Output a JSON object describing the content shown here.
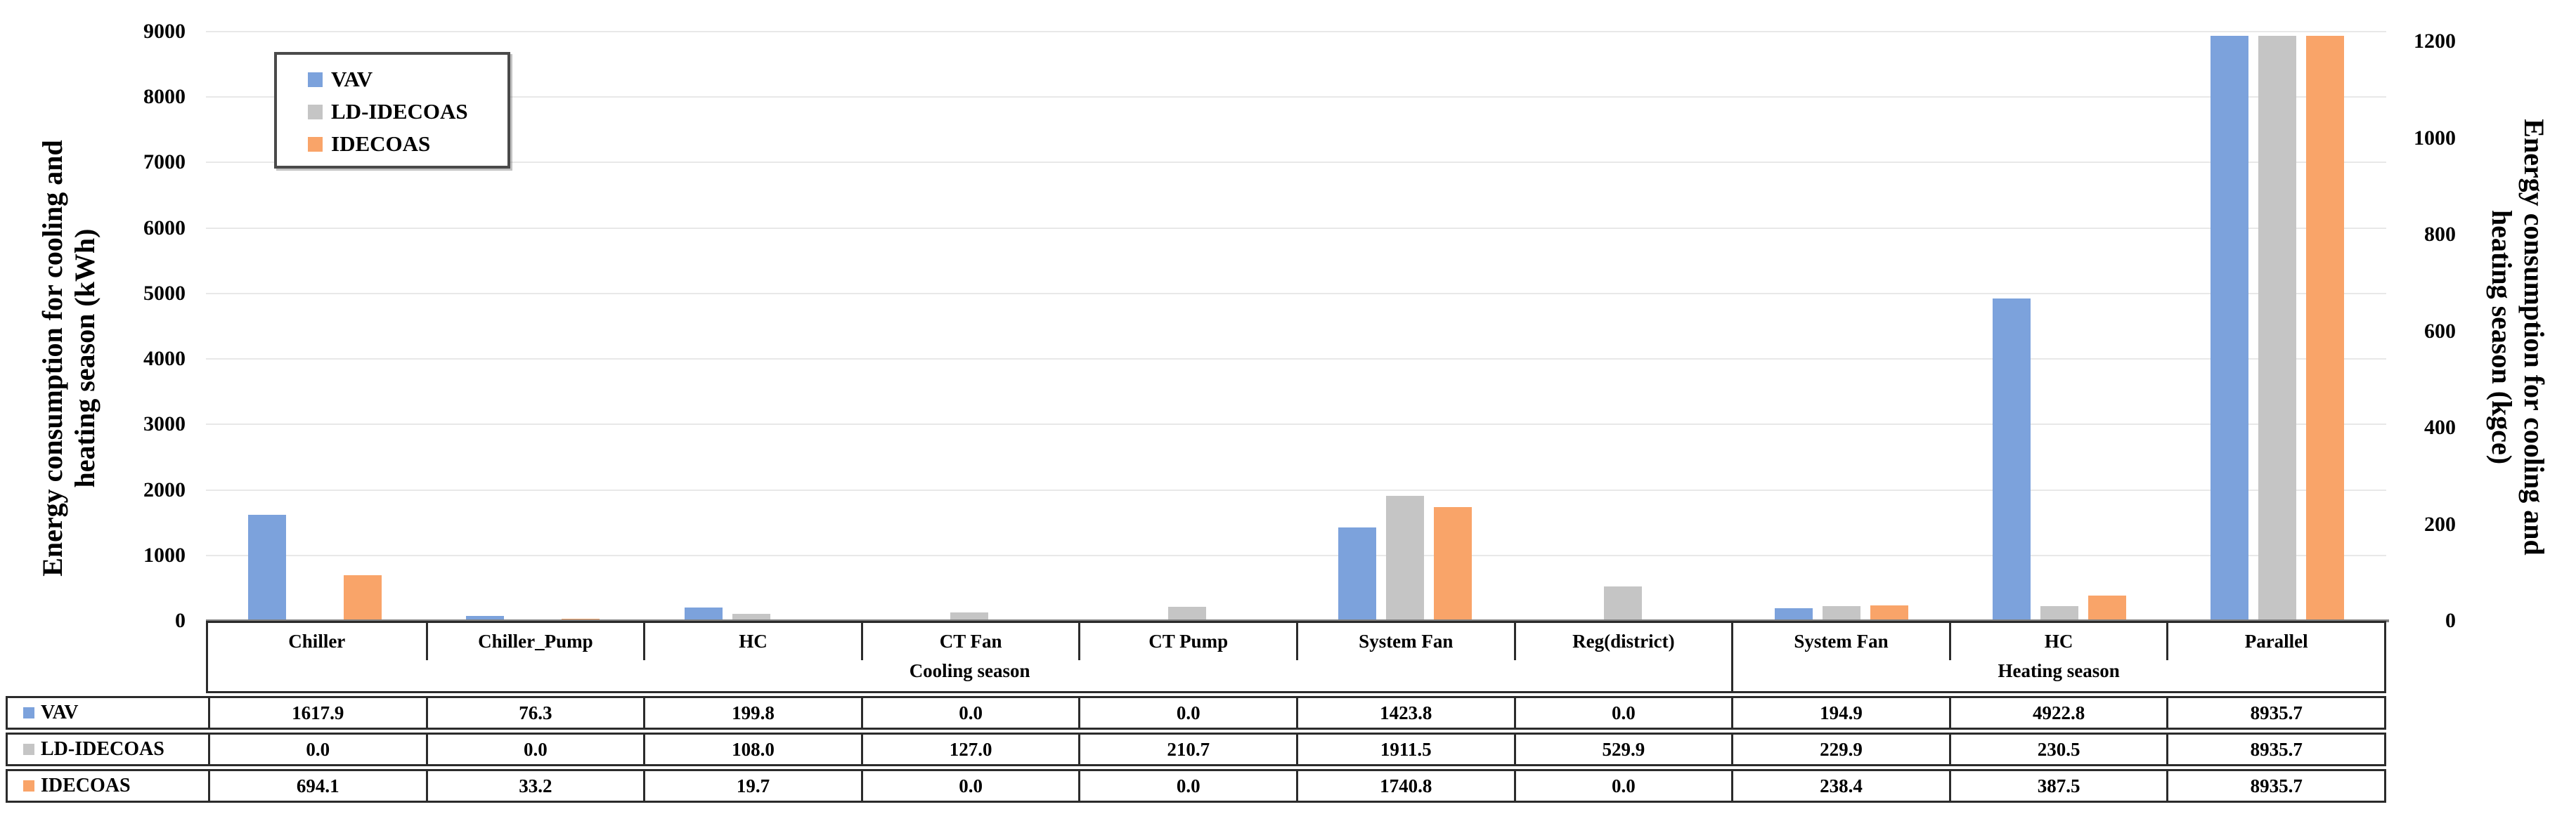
{
  "chart_data": {
    "type": "bar",
    "title": "",
    "categories": [
      "Chiller",
      "Chiller_Pump",
      "HC",
      "CT Fan",
      "CT Pump",
      "System Fan",
      "Reg(district)",
      "System Fan",
      "HC",
      "Parallel"
    ],
    "category_groups": [
      {
        "label": "Cooling season",
        "span": 7
      },
      {
        "label": "Heating season",
        "span": 3
      }
    ],
    "series": [
      {
        "name": "VAV",
        "color": "#7CA2DC",
        "values": [
          1617.9,
          76.3,
          199.8,
          0.0,
          0.0,
          1423.8,
          0.0,
          194.9,
          4922.8,
          8935.7
        ]
      },
      {
        "name": "LD-IDECOAS",
        "color": "#C5C5C5",
        "values": [
          0.0,
          0.0,
          108.0,
          127.0,
          210.7,
          1911.5,
          529.9,
          229.9,
          230.5,
          8935.7
        ]
      },
      {
        "name": "IDECOAS",
        "color": "#F9A469",
        "values": [
          694.1,
          33.2,
          19.7,
          0.0,
          0.0,
          1740.8,
          0.0,
          238.4,
          387.5,
          8935.7
        ]
      }
    ],
    "left_axis": {
      "title_line1": "Energy consumption for cooling and",
      "title_line2": "heating season (kWh)",
      "min": 0,
      "max": 9000,
      "tick_step": 1000,
      "ticks": [
        "0",
        "1000",
        "2000",
        "3000",
        "4000",
        "5000",
        "6000",
        "7000",
        "8000",
        "9000"
      ]
    },
    "right_axis": {
      "title_line1": "Energy consumption for cooling and",
      "title_line2": "heating season (kgce)",
      "min": 0,
      "max": 1200,
      "tick_step": 200,
      "ticks": [
        "0",
        "200",
        "400",
        "600",
        "800",
        "1000",
        "1200"
      ]
    },
    "legend": {
      "position": "top-left",
      "items": [
        "VAV",
        "LD-IDECOAS",
        "IDECOAS"
      ]
    },
    "grid": true
  },
  "table": {
    "row_labels": [
      "VAV",
      "LD-IDECOAS",
      "IDECOAS"
    ],
    "rows": [
      [
        "1617.9",
        "76.3",
        "199.8",
        "0.0",
        "0.0",
        "1423.8",
        "0.0",
        "194.9",
        "4922.8",
        "8935.7"
      ],
      [
        "0.0",
        "0.0",
        "108.0",
        "127.0",
        "210.7",
        "1911.5",
        "529.9",
        "229.9",
        "230.5",
        "8935.7"
      ],
      [
        "694.1",
        "33.2",
        "19.7",
        "0.0",
        "0.0",
        "1740.8",
        "0.0",
        "238.4",
        "387.5",
        "8935.7"
      ]
    ]
  },
  "colors": {
    "axis_line": "#7F7F7F",
    "gridline": "#E8E8E8",
    "table_border": "#2B2B2B",
    "legend_border": "#4A4A4A",
    "text": "#000000"
  }
}
